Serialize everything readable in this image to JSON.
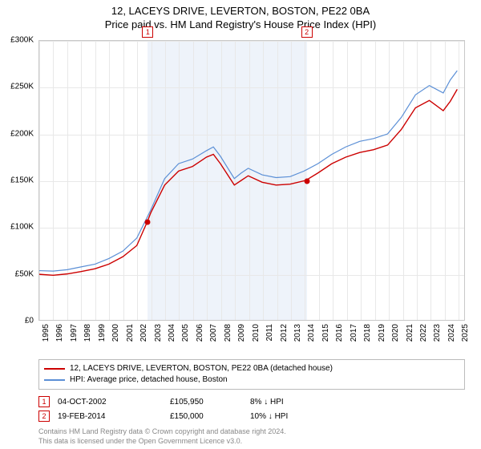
{
  "title": "12, LACEYS DRIVE, LEVERTON, BOSTON, PE22 0BA",
  "subtitle": "Price paid vs. HM Land Registry's House Price Index (HPI)",
  "chart": {
    "type": "line",
    "background_color": "#ffffff",
    "grid_color": "#e8e8e8",
    "border_color": "#c8c8c8",
    "shade_color": "#eef3fa",
    "xlim": [
      1995,
      2025.5
    ],
    "ylim": [
      0,
      300000
    ],
    "ytick_step": 50000,
    "ytick_prefix": "£",
    "ytick_labels": [
      "£0",
      "£50K",
      "£100K",
      "£150K",
      "£200K",
      "£250K",
      "£300K"
    ],
    "xtick_step": 1,
    "xticks": [
      1995,
      1996,
      1997,
      1998,
      1999,
      2000,
      2001,
      2002,
      2003,
      2004,
      2005,
      2006,
      2007,
      2008,
      2009,
      2010,
      2011,
      2012,
      2013,
      2014,
      2015,
      2016,
      2017,
      2018,
      2019,
      2020,
      2021,
      2022,
      2023,
      2024,
      2025
    ],
    "series": [
      {
        "name": "property",
        "label": "12, LACEYS DRIVE, LEVERTON, BOSTON, PE22 0BA (detached house)",
        "color": "#cc0000",
        "line_width": 1.4,
        "data": [
          [
            1995,
            49000
          ],
          [
            1996,
            48000
          ],
          [
            1997,
            49500
          ],
          [
            1998,
            52000
          ],
          [
            1999,
            55000
          ],
          [
            2000,
            60000
          ],
          [
            2001,
            68000
          ],
          [
            2002,
            80000
          ],
          [
            2002.76,
            105950
          ],
          [
            2003,
            115000
          ],
          [
            2004,
            145000
          ],
          [
            2005,
            160000
          ],
          [
            2006,
            165000
          ],
          [
            2007,
            175000
          ],
          [
            2007.5,
            178000
          ],
          [
            2008,
            168000
          ],
          [
            2009,
            145000
          ],
          [
            2009.5,
            150000
          ],
          [
            2010,
            155000
          ],
          [
            2011,
            148000
          ],
          [
            2012,
            145000
          ],
          [
            2013,
            146000
          ],
          [
            2014.13,
            150000
          ],
          [
            2015,
            158000
          ],
          [
            2016,
            168000
          ],
          [
            2017,
            175000
          ],
          [
            2018,
            180000
          ],
          [
            2019,
            183000
          ],
          [
            2020,
            188000
          ],
          [
            2021,
            205000
          ],
          [
            2022,
            228000
          ],
          [
            2023,
            236000
          ],
          [
            2024,
            225000
          ],
          [
            2024.5,
            235000
          ],
          [
            2025,
            248000
          ]
        ]
      },
      {
        "name": "hpi",
        "label": "HPI: Average price, detached house, Boston",
        "color": "#5b8fd6",
        "line_width": 1.2,
        "data": [
          [
            1995,
            53000
          ],
          [
            1996,
            52500
          ],
          [
            1997,
            54000
          ],
          [
            1998,
            57000
          ],
          [
            1999,
            60000
          ],
          [
            2000,
            66000
          ],
          [
            2001,
            74000
          ],
          [
            2002,
            88000
          ],
          [
            2003,
            118000
          ],
          [
            2004,
            152000
          ],
          [
            2005,
            168000
          ],
          [
            2006,
            173000
          ],
          [
            2007,
            182000
          ],
          [
            2007.5,
            186000
          ],
          [
            2008,
            176000
          ],
          [
            2009,
            152000
          ],
          [
            2009.5,
            158000
          ],
          [
            2010,
            163000
          ],
          [
            2011,
            156000
          ],
          [
            2012,
            153000
          ],
          [
            2013,
            154000
          ],
          [
            2014,
            160000
          ],
          [
            2015,
            168000
          ],
          [
            2016,
            178000
          ],
          [
            2017,
            186000
          ],
          [
            2018,
            192000
          ],
          [
            2019,
            195000
          ],
          [
            2020,
            200000
          ],
          [
            2021,
            218000
          ],
          [
            2022,
            242000
          ],
          [
            2023,
            252000
          ],
          [
            2024,
            244000
          ],
          [
            2024.5,
            258000
          ],
          [
            2025,
            268000
          ]
        ]
      }
    ],
    "markers": [
      {
        "n": "1",
        "x": 2002.76,
        "y": 105950,
        "color": "#cc0000"
      },
      {
        "n": "2",
        "x": 2014.13,
        "y": 150000,
        "color": "#cc0000"
      }
    ],
    "shade_range": [
      2002.76,
      2014.13
    ],
    "marker_box_border": "#cc0000",
    "marker_box_bg": "#ffffff"
  },
  "legend": {
    "rows": [
      {
        "color": "#cc0000",
        "label": "12, LACEYS DRIVE, LEVERTON, BOSTON, PE22 0BA (detached house)"
      },
      {
        "color": "#5b8fd6",
        "label": "HPI: Average price, detached house, Boston"
      }
    ]
  },
  "sales": [
    {
      "n": "1",
      "date": "04-OCT-2002",
      "price": "£105,950",
      "diff": "8% ↓ HPI"
    },
    {
      "n": "2",
      "date": "19-FEB-2014",
      "price": "£150,000",
      "diff": "10% ↓ HPI"
    }
  ],
  "footer": {
    "line1": "Contains HM Land Registry data © Crown copyright and database right 2024.",
    "line2": "This data is licensed under the Open Government Licence v3.0."
  },
  "fonts": {
    "title_fontsize": 13,
    "axis_fontsize": 10,
    "legend_fontsize": 10,
    "footer_fontsize": 9
  }
}
